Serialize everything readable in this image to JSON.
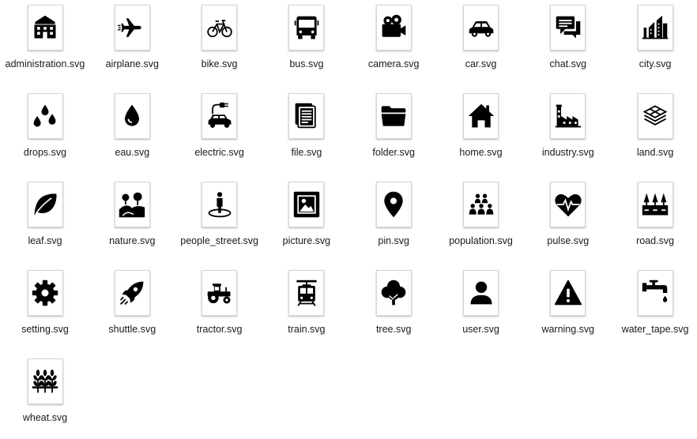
{
  "files": [
    {
      "name": "administration.svg",
      "icon": "administration"
    },
    {
      "name": "airplane.svg",
      "icon": "airplane"
    },
    {
      "name": "bike.svg",
      "icon": "bike"
    },
    {
      "name": "bus.svg",
      "icon": "bus"
    },
    {
      "name": "camera.svg",
      "icon": "camera"
    },
    {
      "name": "car.svg",
      "icon": "car"
    },
    {
      "name": "chat.svg",
      "icon": "chat"
    },
    {
      "name": "city.svg",
      "icon": "city"
    },
    {
      "name": "drops.svg",
      "icon": "drops"
    },
    {
      "name": "eau.svg",
      "icon": "eau"
    },
    {
      "name": "electric.svg",
      "icon": "electric"
    },
    {
      "name": "file.svg",
      "icon": "file"
    },
    {
      "name": "folder.svg",
      "icon": "folder"
    },
    {
      "name": "home.svg",
      "icon": "home"
    },
    {
      "name": "industry.svg",
      "icon": "industry"
    },
    {
      "name": "land.svg",
      "icon": "land"
    },
    {
      "name": "leaf.svg",
      "icon": "leaf"
    },
    {
      "name": "nature.svg",
      "icon": "nature"
    },
    {
      "name": "people_street.svg",
      "icon": "people_street"
    },
    {
      "name": "picture.svg",
      "icon": "picture"
    },
    {
      "name": "pin.svg",
      "icon": "pin"
    },
    {
      "name": "population.svg",
      "icon": "population"
    },
    {
      "name": "pulse.svg",
      "icon": "pulse"
    },
    {
      "name": "road.svg",
      "icon": "road"
    },
    {
      "name": "setting.svg",
      "icon": "setting"
    },
    {
      "name": "shuttle.svg",
      "icon": "shuttle"
    },
    {
      "name": "tractor.svg",
      "icon": "tractor"
    },
    {
      "name": "train.svg",
      "icon": "train"
    },
    {
      "name": "tree.svg",
      "icon": "tree"
    },
    {
      "name": "user.svg",
      "icon": "user"
    },
    {
      "name": "warning.svg",
      "icon": "warning"
    },
    {
      "name": "water_tape.svg",
      "icon": "water_tape"
    },
    {
      "name": "wheat.svg",
      "icon": "wheat"
    }
  ]
}
